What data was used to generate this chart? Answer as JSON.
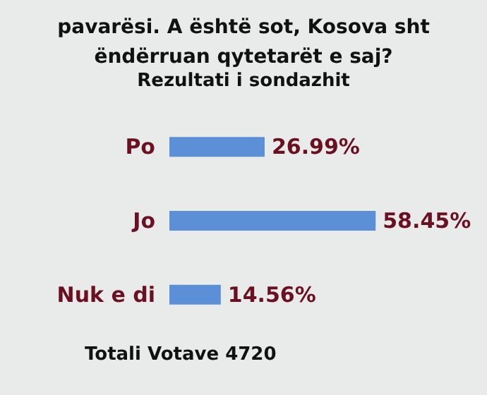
{
  "chart_data": {
    "type": "bar",
    "orientation": "horizontal",
    "title": "pavarësi. A është sot, Kosova sht\nëndërruan qytetarët e saj?",
    "subtitle": "Rezultati i sondazhit",
    "categories": [
      "Po",
      "Jo",
      "Nuk e di"
    ],
    "values": [
      26.99,
      58.45,
      14.56
    ],
    "color": "#5b8fd6",
    "value_labels": [
      "26.99%",
      "58.45%",
      "14.56%"
    ],
    "annotations": [
      "Totali Votave 4720"
    ]
  }
}
